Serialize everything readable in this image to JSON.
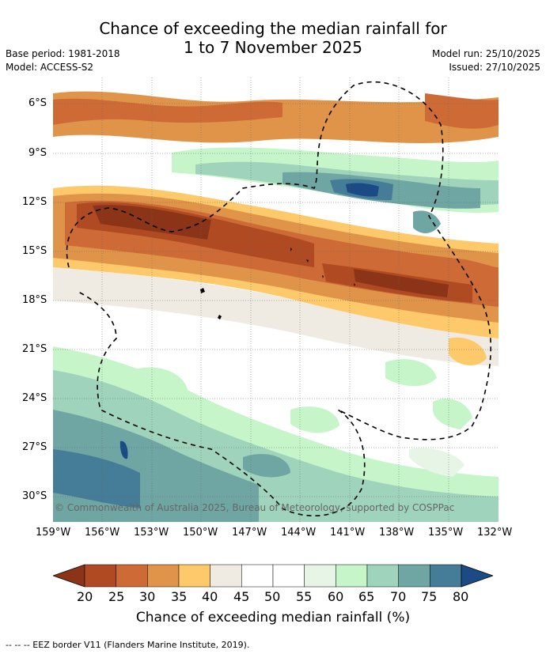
{
  "title_line1": "Chance of exceeding the median rainfall for",
  "title_line2": "1 to 7 November 2025",
  "base_period": "Base period: 1981-2018",
  "model": "Model: ACCESS-S2",
  "model_run": "Model run: 25/10/2025",
  "issued": "Issued: 27/10/2025",
  "copyright": "© Commonwealth of Australia 2025, Bureau of Meteorology, supported by COSPPac",
  "lat_labels": [
    "6°S",
    "9°S",
    "12°S",
    "15°S",
    "18°S",
    "21°S",
    "24°S",
    "27°S",
    "30°S"
  ],
  "lon_labels": [
    "159°W",
    "156°W",
    "153°W",
    "150°W",
    "147°W",
    "144°W",
    "141°W",
    "138°W",
    "135°W",
    "132°W"
  ],
  "colorbar": {
    "ticks": [
      "20",
      "25",
      "30",
      "35",
      "40",
      "45",
      "50",
      "55",
      "60",
      "65",
      "70",
      "75",
      "80"
    ],
    "colors": [
      "#8b3418",
      "#b04a22",
      "#cd6a35",
      "#e0944a",
      "#fdc96b",
      "#efebe2",
      "#ffffff",
      "#ffffff",
      "#e6f5e6",
      "#c5f5c8",
      "#9fd3bb",
      "#6fa6a3",
      "#457c98",
      "#1c4a85"
    ],
    "label": "Chance of exceeding median rainfall (%)"
  },
  "footnote": "--  --  -- EEZ border V11 (Flanders Marine Institute, 2019)."
}
